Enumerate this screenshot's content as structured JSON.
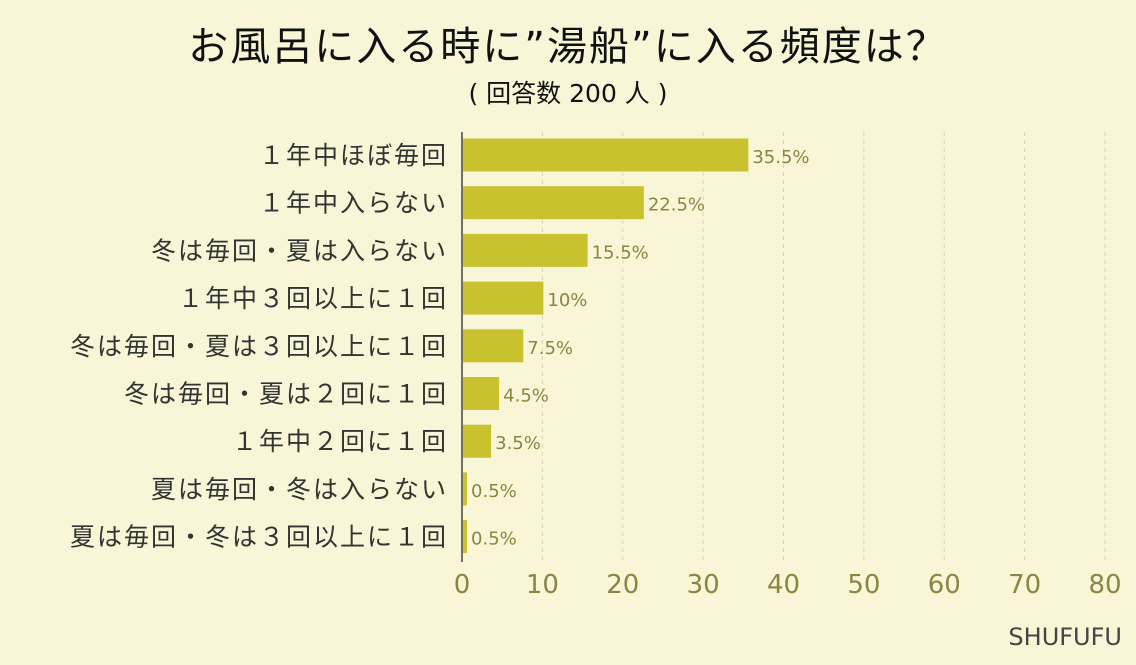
{
  "chart_data": {
    "type": "bar",
    "orientation": "horizontal",
    "title": "お風呂に入る時に”湯船”に入る頻度は？",
    "subtitle": "( 回答数 200 人 )",
    "categories": [
      "１年中ほぼ毎回",
      "１年中入らない",
      "冬は毎回・夏は入らない",
      "１年中３回以上に１回",
      "冬は毎回・夏は３回以上に１回",
      "冬は毎回・夏は２回に１回",
      "１年中２回に１回",
      "夏は毎回・冬は入らない",
      "夏は毎回・冬は３回以上に１回"
    ],
    "values": [
      35.5,
      22.5,
      15.5,
      10,
      7.5,
      4.5,
      3.5,
      0.5,
      0.5
    ],
    "value_labels": [
      "35.5%",
      "22.5%",
      "15.5%",
      "10%",
      "7.5%",
      "4.5%",
      "3.5%",
      "0.5%",
      "0.5%"
    ],
    "xlim": [
      0,
      80
    ],
    "xticks": [
      0,
      10,
      20,
      30,
      40,
      50,
      60,
      70,
      80
    ],
    "grid": "vertical dashed",
    "bar_color": "#c8c230",
    "source": "SHUFUFU"
  }
}
